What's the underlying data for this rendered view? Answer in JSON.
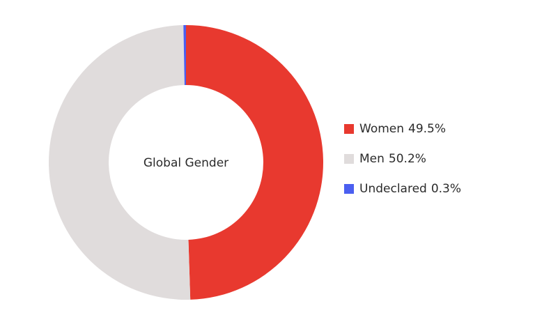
{
  "chart_data": {
    "type": "donut",
    "title": "Global Gender",
    "categories": [
      "Women",
      "Men",
      "Undeclared"
    ],
    "values": [
      49.5,
      50.2,
      0.3
    ],
    "value_labels": [
      "49.5%",
      "50.2%",
      "0.3%"
    ],
    "colors": [
      "#e8392f",
      "#e0dcdc",
      "#4b5ff0"
    ],
    "legend": "right"
  }
}
